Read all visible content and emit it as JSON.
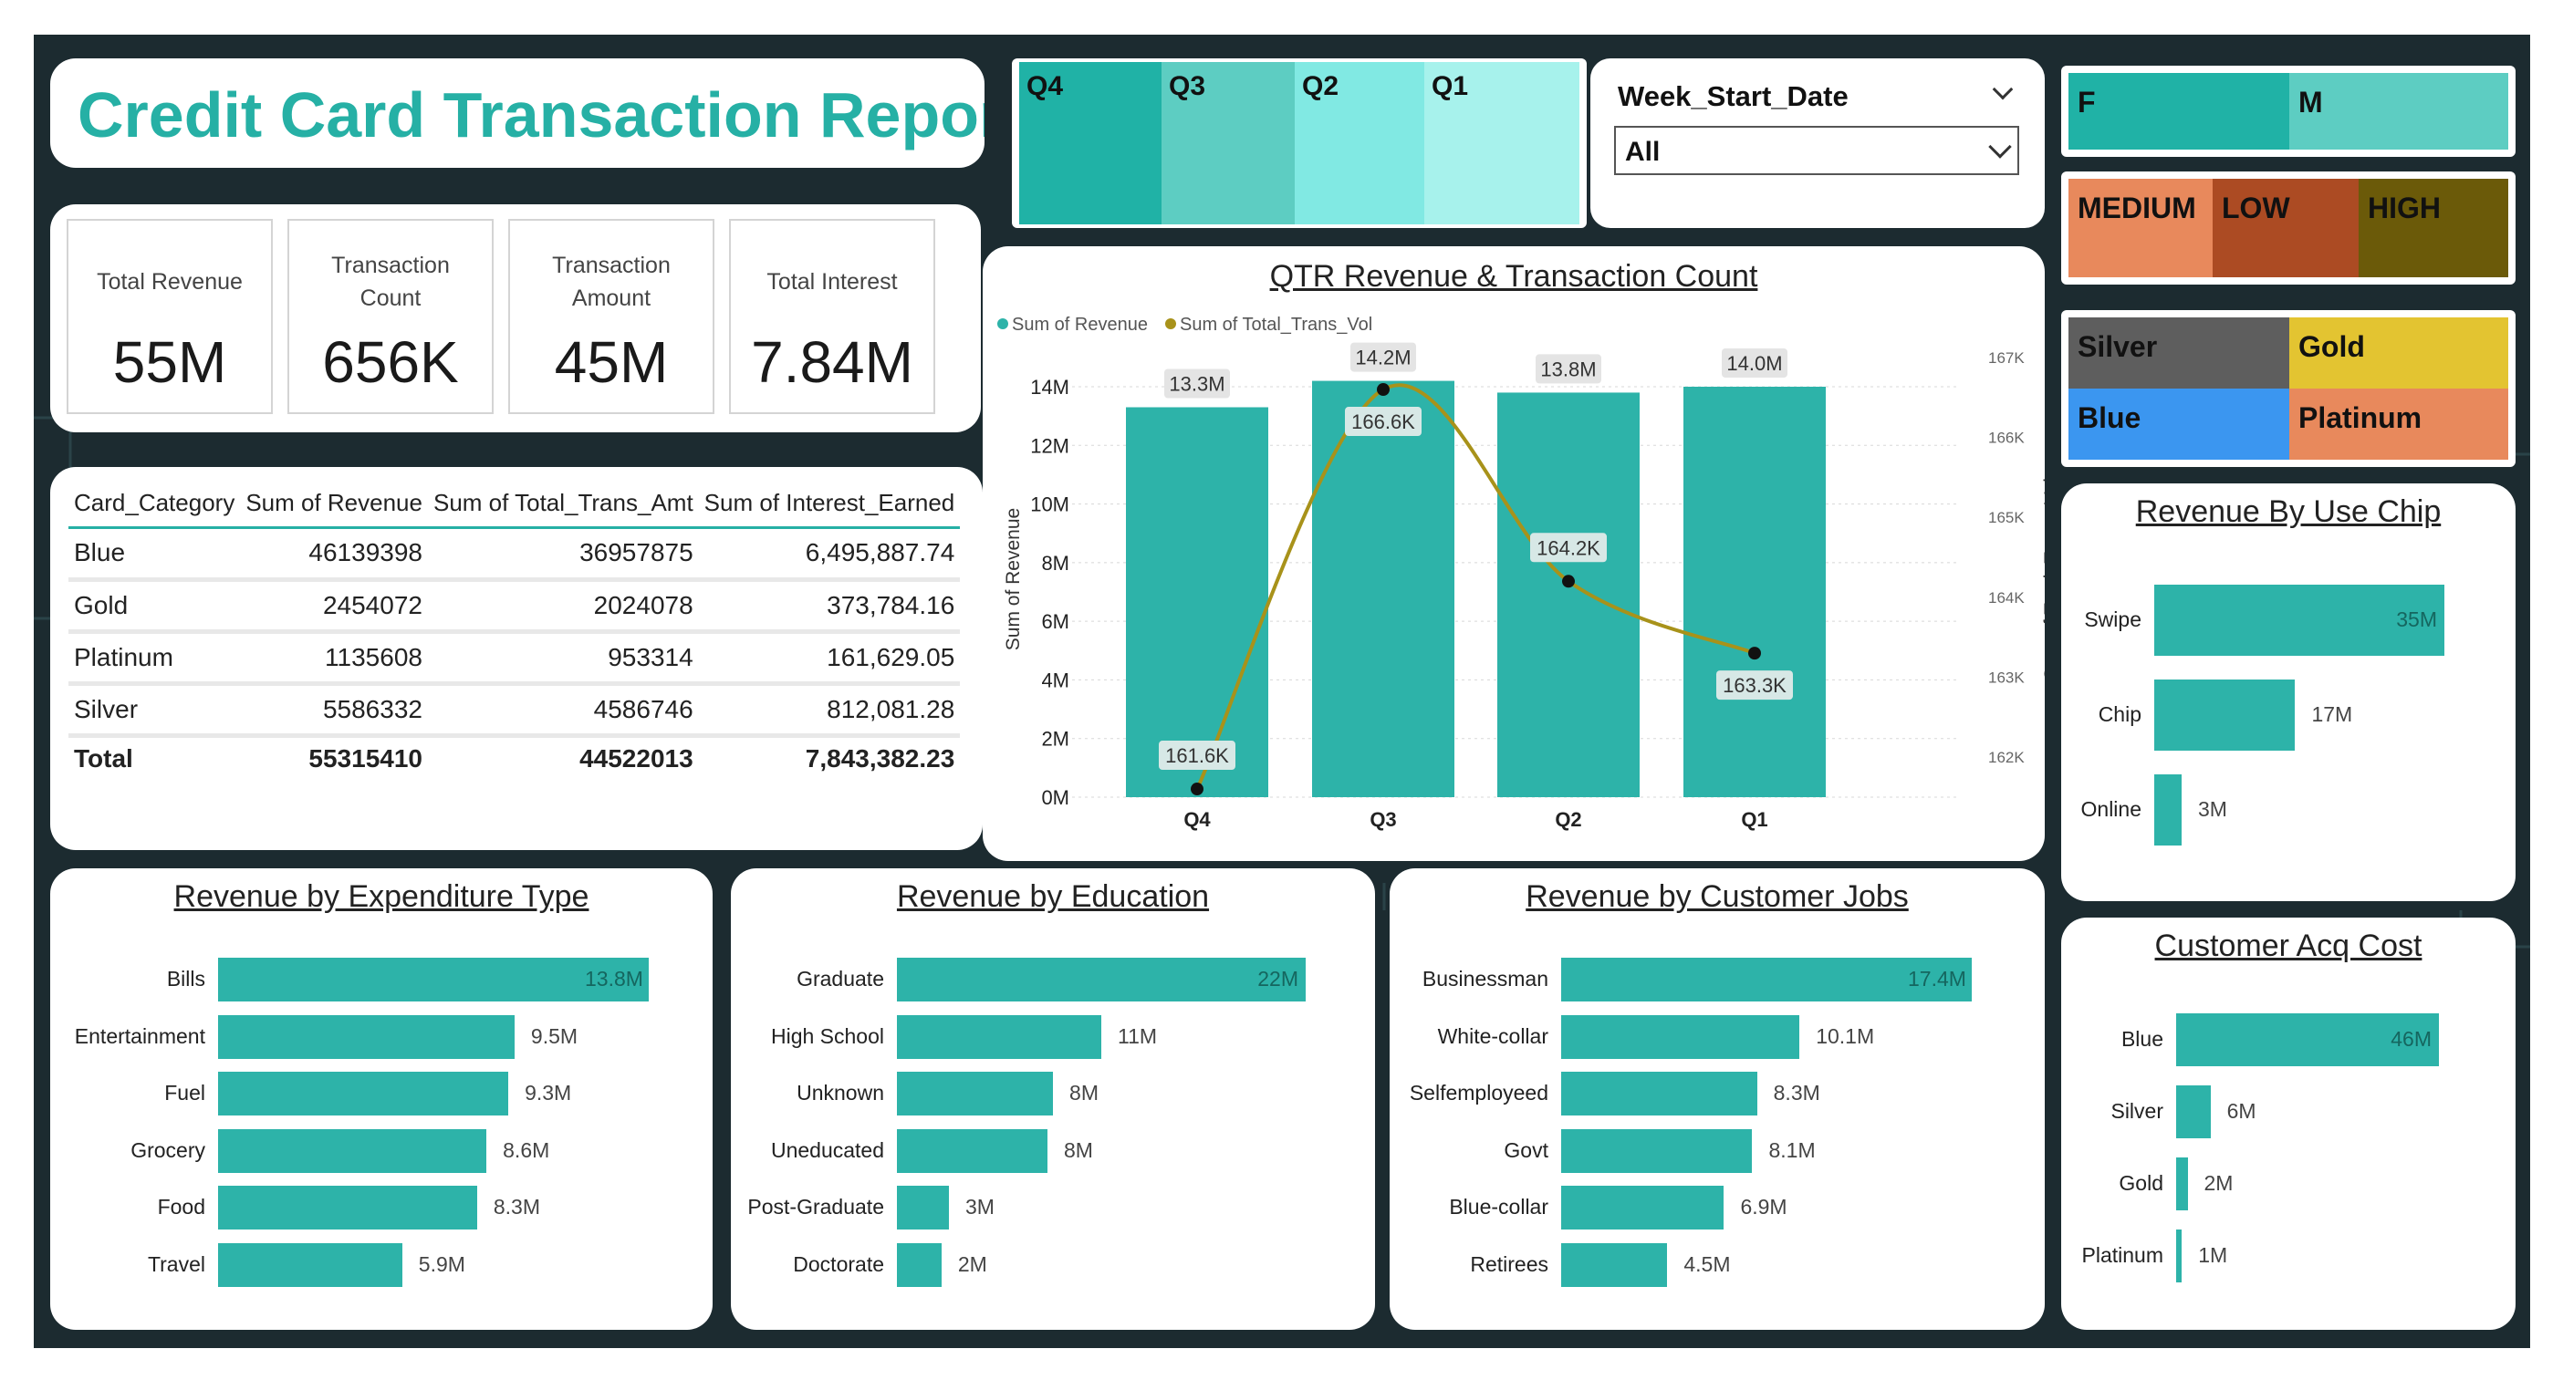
{
  "header": {
    "title": "Credit Card Transaction Report"
  },
  "kpis": [
    {
      "label": "Total Revenue",
      "value": "55M"
    },
    {
      "label": "Transaction Count",
      "value": "656K"
    },
    {
      "label": "Transaction Amount",
      "value": "45M"
    },
    {
      "label": "Total Interest",
      "value": "7.84M"
    }
  ],
  "quarter_slicer": [
    {
      "label": "Q4",
      "color": "#20b2a6"
    },
    {
      "label": "Q3",
      "color": "#5dcdc2"
    },
    {
      "label": "Q2",
      "color": "#81e9e3"
    },
    {
      "label": "Q1",
      "color": "#a7f2ec"
    }
  ],
  "week_filter": {
    "label": "Week_Start_Date",
    "value": "All"
  },
  "gender_slicer": [
    {
      "label": "F",
      "color": "#20b2a6"
    },
    {
      "label": "M",
      "color": "#5dcdc2"
    }
  ],
  "income_slicer": [
    {
      "label": "MEDIUM",
      "color": "#e8895c"
    },
    {
      "label": "LOW",
      "color": "#ac4b23"
    },
    {
      "label": "HIGH",
      "color": "#6b5a09"
    }
  ],
  "card_slicer": [
    {
      "label": "Silver",
      "color": "#5e5e5e"
    },
    {
      "label": "Gold",
      "color": "#e3c431"
    },
    {
      "label": "Blue",
      "color": "#3b96f0"
    },
    {
      "label": "Platinum",
      "color": "#e8895c"
    }
  ],
  "card_table": {
    "columns": [
      "Card_Category",
      "Sum of Revenue",
      "Sum of Total_Trans_Amt",
      "Sum of Interest_Earned"
    ],
    "rows": [
      [
        "Blue",
        "46139398",
        "36957875",
        "6,495,887.74"
      ],
      [
        "Gold",
        "2454072",
        "2024078",
        "373,784.16"
      ],
      [
        "Platinum",
        "1135608",
        "953314",
        "161,629.05"
      ],
      [
        "Silver",
        "5586332",
        "4586746",
        "812,081.28"
      ]
    ],
    "total": [
      "Total",
      "55315410",
      "44522013",
      "7,843,382.23"
    ]
  },
  "chart_data": [
    {
      "id": "qtr",
      "type": "bar",
      "title": "QTR Revenue & Transaction Count",
      "categories": [
        "Q4",
        "Q3",
        "Q2",
        "Q1"
      ],
      "series": [
        {
          "name": "Sum of Revenue",
          "type": "bar",
          "values": [
            13300000,
            14200000,
            13800000,
            14000000
          ],
          "labels": [
            "13.3M",
            "14.2M",
            "13.8M",
            "14.0M"
          ],
          "color": "#2db3a9"
        },
        {
          "name": "Sum of Total_Trans_Vol",
          "type": "line",
          "values": [
            161600,
            166600,
            164200,
            163300
          ],
          "labels": [
            "161.6K",
            "166.6K",
            "164.2K",
            "163.3K"
          ],
          "color": "#a8921a"
        }
      ],
      "ylabel": "Sum of Revenue",
      "y2label": "Sum of Total_Trans_Vol",
      "ylim": [
        0,
        14000000
      ],
      "yticks": [
        "0M",
        "2M",
        "4M",
        "6M",
        "8M",
        "10M",
        "12M",
        "14M"
      ],
      "y2ticks": [
        "162K",
        "163K",
        "164K",
        "165K",
        "166K",
        "167K"
      ],
      "y2lim": [
        161500,
        167000
      ],
      "legend": "top-left",
      "grid": true
    },
    {
      "id": "chip",
      "type": "bar",
      "title": "Revenue By Use Chip",
      "categories": [
        "Swipe",
        "Chip",
        "Online"
      ],
      "values": [
        35,
        17,
        3
      ],
      "labels": [
        "35M",
        "17M",
        "3M"
      ]
    },
    {
      "id": "exp",
      "type": "bar",
      "title": "Revenue by Expenditure Type",
      "categories": [
        "Bills",
        "Entertainment",
        "Fuel",
        "Grocery",
        "Food",
        "Travel"
      ],
      "values": [
        13.8,
        9.5,
        9.3,
        8.6,
        8.3,
        5.9
      ],
      "labels": [
        "13.8M",
        "9.5M",
        "9.3M",
        "8.6M",
        "8.3M",
        "5.9M"
      ]
    },
    {
      "id": "edu",
      "type": "bar",
      "title": "Revenue by Education",
      "categories": [
        "Graduate",
        "High School",
        "Unknown",
        "Uneducated",
        "Post-Graduate",
        "Doctorate"
      ],
      "values": [
        22,
        11,
        8.4,
        8.1,
        2.8,
        2.4
      ],
      "labels": [
        "22M",
        "11M",
        "8M",
        "8M",
        "3M",
        "2M"
      ]
    },
    {
      "id": "jobs",
      "type": "bar",
      "title": "Revenue by Customer Jobs",
      "categories": [
        "Businessman",
        "White-collar",
        "Selfemployeed",
        "Govt",
        "Blue-collar",
        "Retirees"
      ],
      "values": [
        17.4,
        10.1,
        8.3,
        8.1,
        6.9,
        4.5
      ],
      "labels": [
        "17.4M",
        "10.1M",
        "8.3M",
        "8.1M",
        "6.9M",
        "4.5M"
      ]
    },
    {
      "id": "acq",
      "type": "bar",
      "title": "Customer Acq Cost",
      "categories": [
        "Blue",
        "Silver",
        "Gold",
        "Platinum"
      ],
      "values": [
        46,
        6,
        2,
        1
      ],
      "labels": [
        "46M",
        "6M",
        "2M",
        "1M"
      ]
    }
  ]
}
